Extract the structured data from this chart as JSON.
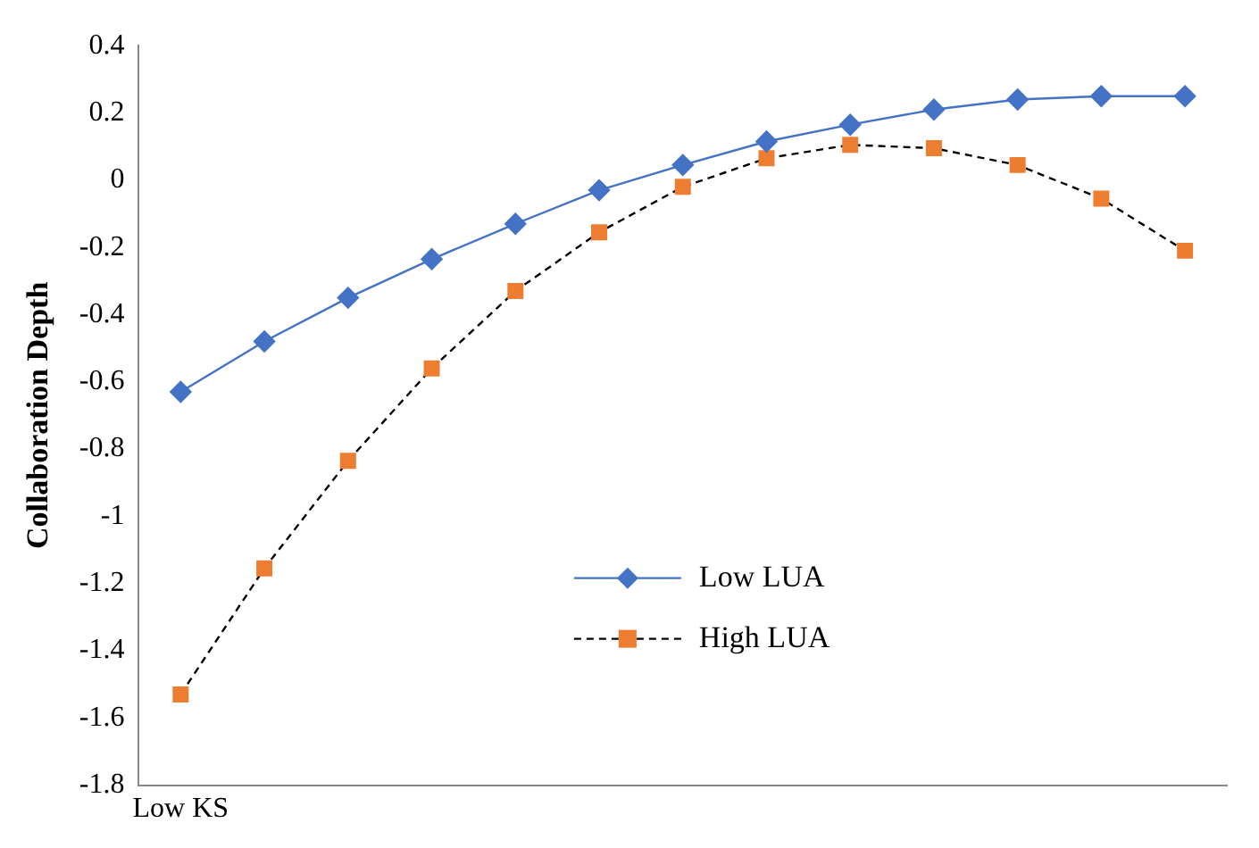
{
  "chart_data": {
    "type": "line",
    "ylabel": "Collaboration Depth",
    "categories": [
      "Low KS",
      null,
      null,
      null,
      null,
      null,
      null,
      null,
      null,
      null,
      null,
      null,
      null
    ],
    "series": [
      {
        "name": "Low LUA",
        "color": "#4472c4",
        "marker": "diamond",
        "line_style": "solid",
        "values": [
          -0.63,
          -0.48,
          -0.35,
          -0.235,
          -0.13,
          -0.03,
          0.045,
          0.115,
          0.165,
          0.21,
          0.24,
          0.25,
          0.25
        ]
      },
      {
        "name": "High LUA",
        "color": "#ed7d31",
        "marker": "square",
        "line_style": "dashed",
        "values": [
          -1.53,
          -1.155,
          -0.835,
          -0.56,
          -0.33,
          -0.155,
          -0.02,
          0.065,
          0.105,
          0.095,
          0.045,
          -0.055,
          -0.21
        ]
      }
    ],
    "ylim": [
      -1.8,
      0.4
    ],
    "yticks": [
      -1.8,
      -1.6,
      -1.4,
      -1.2,
      -1,
      -0.8,
      -0.6,
      -0.4,
      -0.2,
      0,
      0.2,
      0.4
    ],
    "grid": false,
    "legend": "bottom"
  }
}
